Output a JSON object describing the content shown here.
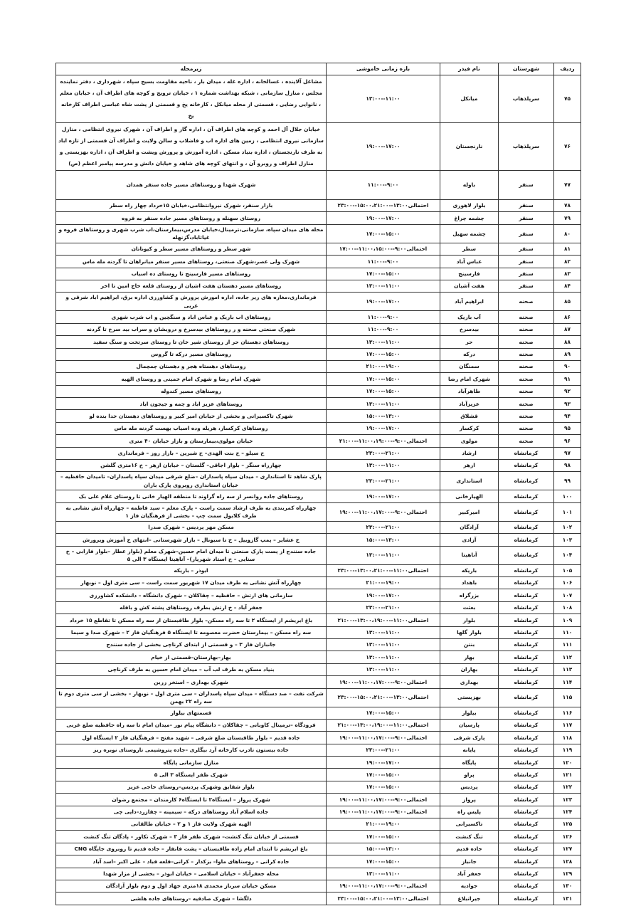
{
  "table": {
    "headers": [
      "ردیف",
      "شهرستان",
      "نام فیدر",
      "بازه زمانی خاموشی",
      "زیرمحله"
    ],
    "rows": [
      [
        "۷۵",
        "سرپلذهاب",
        "میانکل",
        "۱۱:۰۰--۱۳:۰۰",
        "مشاغل آلاینده ، غسالخانه ، اداره غله ، میدان بار ، ناحیه مقاومت بسیج سپاه ، شهرداری ، دفتر نماینده مجلس ، منازل سازمانی ، شبکه بهداشت شماره ۱ ، خیابان ترویج و کوچه های اطراف آن ، خیابان معلم ، نانوایی رضایی ، قسمتی از محله میانکل ، کارخانه یخ و قسمتی از پشت شاه عباسی اطراف کارخانه یخ"
      ],
      [
        "۷۶",
        "سرپلذهاب",
        "نارنجستان",
        "۱۷:۰۰--۱۹:۰۰",
        "خیابان جلال آل احمد و کوچه های اطراف آن ، اداره گاز و اطراف آن ، شهرک نیروی انتظامی ، منازل سازمانی نیروی انتظامی ، زمین های اداره اب و فاضلاب و سالن ولایت و اطراف آن قسمتی از تازه اباد به طرف نارنجستان ، اداره بنیاد مسکن ، اداره آموزش و پرورش ویشت و اطراف آن ، اداره بهزیستی و منازل اطراف و روبرو آن ، و انتهای کوچه های شاهد و خیابان دانش و مدرسه پیامبر اعظم (ص)"
      ],
      [
        "۷۷",
        "سنقر",
        "باوله",
        "۹:۰۰--۱۱:۰۰",
        "شهرک شهدا و روستاهای مسیر جاده سنقر همدان"
      ],
      [
        "۷۸",
        "سنقر",
        "بلوار لاهوری",
        "احتمالی۱۳:۰۰--۱۵:۰۰،۲۱:۰۰--۲۳:۰۰",
        "بازار سنقر، شهرک نیروانتظامی،خیابان ۱۵خرداد چهار راه سطر"
      ],
      [
        "۷۹",
        "سنقر",
        "چشمه چراغ",
        "۱۷:۰۰--۱۹:۰۰",
        "روستای سهنله و روستاهای مسیر جاده سنقر به فروه"
      ],
      [
        "۸۰",
        "سنقر",
        "چشمه سهیل",
        "۱۵:۰۰--۱۷:۰۰",
        "محله های میدان سپاه، سازمانی،ترمینال،خیابان مدرس،بیمارستان،اب شرب شهری و روستاهای فروه و غیاثاباد،گزنهله"
      ],
      [
        "۸۱",
        "سنقر",
        "سطر",
        "احتمالی۹:۰۰--۱۱:۰۰،۱۵:۰۰--۱۷:۰۰",
        "شهر سطر و روستاهای مسیر سطر و کیوناتان"
      ],
      [
        "۸۲",
        "سنقر",
        "عباس آباد",
        "۹:۰۰--۱۱:۰۰",
        "شهرک ولی عصر،شهرک صنعتی، روستاهای مسیر سنقر میانراهان تا گردنه مله ماس"
      ],
      [
        "۸۳",
        "سنقر",
        "فارسینج",
        "۱۵:۰۰--۱۷:۰۰",
        "روستاهای مسیر فارسینج تا روستای ده اسیاب"
      ],
      [
        "۸۴",
        "سنقر",
        "هفت آشیان",
        "۱۱:۰۰--۱۳:۰۰",
        "روستاهای مسیر دهستان هفت اشیان از روستای قلعه حاج امین تا اخر"
      ],
      [
        "۸۵",
        "صحنه",
        "ابراهیم آباد",
        "۱۷:۰۰--۱۹:۰۰",
        "فرمانداری،مغازه های زیر جاده، اداره اموزش پرورش و کشاورزی اداره برق، ابراهیم اباد شرقی و غربی"
      ],
      [
        "۸۶",
        "صحنه",
        "آب باریک",
        "۹:۰۰--۱۱:۰۰",
        "روستاهای اب باریک و عباس اباد و سنگچین و اب شرب شهری"
      ],
      [
        "۸۷",
        "صحنه",
        "بیدسرخ",
        "۹:۰۰--۱۱:۰۰",
        "شهرک صنعتی صحنه و ر روستاهای بیدسرخ و درویشان و سراب بید سرخ تا گردنه"
      ],
      [
        "۸۸",
        "صحنه",
        "حر",
        "۱۱:۰۰--۱۳:۰۰",
        "روستاهای دهستان حر از روستای شیر خان تا روستای سرتخت و سنگ سفید"
      ],
      [
        "۸۹",
        "صحنه",
        "درکه",
        "۱۵:۰۰--۱۷:۰۰",
        "روستاهای مسیر درکه تا گروس"
      ],
      [
        "۹۰",
        "صحنه",
        "سمنگان",
        "۱۹:۰۰--۲۱:۰۰",
        "روستاهای دهستاه هجر و دهستان چمچمال"
      ],
      [
        "۹۱",
        "صحنه",
        "شهرک امام رضا",
        "۱۵:۰۰--۱۷:۰۰",
        "شهرک امام رضا و شهرک امام خمینی و روستای الهیه"
      ],
      [
        "۹۲",
        "صحنه",
        "طاهرآباد",
        "۱۵:۰۰--۱۷:۰۰",
        "روستاهای مسیر کندوله"
      ],
      [
        "۹۳",
        "صحنه",
        "عزیزآباد",
        "۱۱:۰۰--۱۳:۰۰",
        "روستاهای عزیز اباد و چمه و جیجون اباد"
      ],
      [
        "۹۴",
        "صحنه",
        "قشلاق",
        "۱۳:۰۰--۱۵:۰۰",
        "شهرک تاکسیرانی و بخشی از خیابان امیر کبیر و روستاهای دهستان خدا بنده لو"
      ],
      [
        "۹۵",
        "صحنه",
        "کرکسار",
        "۱۷:۰۰--۱۹:۰۰",
        "روستاهای کرکسار، هریله وده اسیاب بهست گردنه مله ماس"
      ],
      [
        "۹۶",
        "صحنه",
        "مولوی",
        "احتمالی۹:۰۰--۱۱:۰۰،۱۹:۰۰--۲۱:۰۰",
        "خیابان مولوی،بیمارستان و بازار خیابان ۴۰ متری"
      ],
      [
        "۹۷",
        "کرمانشاه",
        "ارشاد",
        "۲۱:۰۰--۲۳:۰۰",
        "خ سیلو – خ بنت الهدی– خ شیرین – بازار روز – فرمانداری"
      ],
      [
        "۹۸",
        "کرمانشاه",
        "ازهر",
        "۱۱:۰۰--۱۳:۰۰",
        "چهارراه سنگر – بلوار اجاقی– گلستان – خیابان ازهر – خ ۱۶متری گلشن"
      ],
      [
        "۹۹",
        "کرمانشاه",
        "استانداری",
        "۲۱:۰۰--۲۳:۰۰",
        "پارک شاهد تا استانداری – میدان سپاه پاسداران –ضلع شرقی میدان سپاه پاسداران– تامیدان حافظیه – خیابان استانداری روبروی پارک باران"
      ],
      [
        "۱۰۰",
        "کرمانشاه",
        "الهیارخانی",
        "۱۷:۰۰--۱۹:۰۰",
        "روستاهای جاده روانسر از سه راه گراوند تا منطقه الهیار خانی تا روستای غلام علی بک"
      ],
      [
        "۱۰۱",
        "کرمانشاه",
        "امیرکبیر",
        "احتمالی۹:۰۰--۱۱:۰۰،۱۷:۰۰--۱۹:۰۰",
        "چهارراه کمربندی به طرف ارشاد سمت راست – پارک معلم – سید فاطمه – چهارراه آتش نشانی به طرف کلابول سمت چپ – بخشی از فرهنگیان فاز ۱"
      ],
      [
        "۱۰۲",
        "کرمانشاه",
        "آزادگان",
        "۲۱:۰۰--۲۳:۰۰",
        "مسکن مهر پردیس – شهرک صدرا"
      ],
      [
        "۱۰۳",
        "کرمانشاه",
        "آزادی",
        "۱۳:۰۰--۱۵:۰۰",
        "خ عشایر – پمپ گازوییل – خ تا سیونال – بازار شهرستانی –انتهای خ آموزش وپرورش"
      ],
      [
        "۱۰۴",
        "کرمانشاه",
        "آناهیتا",
        "۱۱:۰۰--۱۳:۰۰",
        "جاده سنندج از پست پارک صنعتی تا میدان امام حسین–شهرک معلم (بلوار عطار –بلوار فارابی – خ سنایی – خ استاد شهریار)– آناهیتا ایستگاه ۳ الی ۵"
      ],
      [
        "۱۰۵",
        "کرمانشاه",
        "باریکه",
        "احتمالی۱۱:۰۰--۱۳:۰۰،۲۱:۰۰--۲۳:۰۰",
        "ابوذر – باریکه"
      ],
      [
        "۱۰۶",
        "کرمانشاه",
        "باهداد",
        "۱۹:۰۰--۲۱:۰۰",
        "چهارراه آتش نشانی به طرف میدان ۱۷ شهریور سمت راست – سی متری اول – نوبهار"
      ],
      [
        "۱۰۷",
        "کرمانشاه",
        "بزرگراه",
        "۱۷:۰۰--۱۹:۰۰",
        "سازمانی های ارتش – حافظیه – چقاکلان – شهرک دانشگاه – دانشکده کشاورزی"
      ],
      [
        "۱۰۸",
        "کرمانشاه",
        "بعثت",
        "۲۱:۰۰--۲۳:۰۰",
        "جعفر آباد – خ ارتش بطرف روستاهای پشته کش و باقله"
      ],
      [
        "۱۰۹",
        "کرمانشاه",
        "بلوار",
        "احتمالی۱۱:۰۰--۱۳:۰۰،۱۹:۰۰--۲۱:۰۰",
        "باغ ابریشم از ایستگاه ۲ تا سه راه مسکن– بلوار طاقبستان از سه راه مسکن تا تقاطع ۱۵ خرداد"
      ],
      [
        "۱۱۰",
        "کرمانشاه",
        "بلوار گلها",
        "۱۱:۰۰--۱۳:۰۰",
        "سه راه مسکن – بیمارستان حضرت معصومه تا ایستگاه ۵ فرهنگیان فاز ۲ – شهرک صدا و سیما"
      ],
      [
        "۱۱۱",
        "کرمانشاه",
        "بنتن",
        "۱۱:۰۰--۱۳:۰۰",
        "جانبازان فاز ۳ – و قسمتی از ابتدای کرناچی بخشی از جاده سنندج"
      ],
      [
        "۱۱۲",
        "کرمانشاه",
        "بهار",
        "۱۱:۰۰--۱۳:۰۰",
        "بهار–بهارستان–قسمتی از خیام"
      ],
      [
        "۱۱۳",
        "کرمانشاه",
        "بهاران",
        "۱۱:۰۰--۱۳:۰۰",
        "بنیاد مسکن به طرف لب آب – میدان امام حسین به طرف کرناچی"
      ],
      [
        "۱۱۴",
        "کرمانشاه",
        "بهداری",
        "احتمالی۹:۰۰--۱۱:۰۰،۱۷:۰۰--۱۹:۰۰",
        "شهرک بهداری – استخر زرین"
      ],
      [
        "۱۱۵",
        "کرمانشاه",
        "بهزیستی",
        "احتمالی۱۳:۰۰--۱۵:۰۰،۲۱:۰۰--۲۳:۰۰",
        "شرکت نفت – صد دستگاه – میدان سپاه پاسداران – سی متری اول – نوبهار – بخشی از سی متری دوم تا سه راه ۲۲ بهمن"
      ],
      [
        "۱۱۶",
        "کرمانشاه",
        "بیلوار",
        "۱۵:۰۰--۱۷:۰۰",
        "قسمتهای بیلوار"
      ],
      [
        "۱۱۷",
        "کرمانشاه",
        "پارسیان",
        "احتمالی۱۱:۰۰--۱۳:۰۰،۱۹:۰۰--۲۱:۰۰",
        "فرودگاه –ترمینال کاوبانی – چقاکلان – دانشگاه پیام نور –میدان امام تا سه راه حافظیه ضلع غربی"
      ],
      [
        "۱۱۸",
        "کرمانشاه",
        "پارک شرقی",
        "احتمالی۹:۰۰--۱۱:۰۰،۱۷:۰۰--۱۹:۰۰",
        "جاده قدیم – بلوار طاقبستان ضلع شرقی – شهید مفتح – فرهنگیان فاز ۲ ایستگاه اول"
      ],
      [
        "۱۱۹",
        "کرمانشاه",
        "پایانه",
        "۲۱:۰۰--۲۳:۰۰",
        "جاده بیستون تادرب کارخانه آرد بیگلری –جاده پتروشیمی تاروستای نوبره ریز"
      ],
      [
        "۱۲۰",
        "کرمانشاه",
        "پایگاه",
        "۱۷:۰۰--۱۹:۰۰",
        "منازل سازمانی پایگاه"
      ],
      [
        "۱۲۱",
        "کرمانشاه",
        "پراو",
        "۱۵:۰۰--۱۷:۰۰",
        "شهرک ظفر ایستگاه ۳ الی ۵"
      ],
      [
        "۱۲۲",
        "کرمانشاه",
        "پردیس",
        "۱۵:۰۰--۱۷:۰۰",
        "بلوار شقایق وشهرک پردیس–روستای حاجی عزیز"
      ],
      [
        "۱۲۳",
        "کرمانشاه",
        "پرواز",
        "احتمالی۹:۰۰--۱۱:۰۰،۱۷:۰۰--۱۹:۰۰",
        "شهرک پرواز – ایستگاه۲ تا ایستگاه۶ کارمندان – مجتمع رضوان"
      ],
      [
        "۱۲۴",
        "کرمانشاه",
        "پلیس راه",
        "احتمالی۹:۰۰--۱۱:۰۰،۱۷:۰۰--۱۹:۰۰",
        "جاده اسلام آباد روستاهای درکه – سیمینه – چقازرد–دایی چی"
      ],
      [
        "۱۲۵",
        "کرمانشاه",
        "تاکسیرانی",
        "۱۹:۰۰--۲۱:۰۰",
        "الهیه شهرک ولایت فاز ۱ و ۲ – خیابان طالقانی"
      ],
      [
        "۱۲۶",
        "کرمانشاه",
        "تنگ کنشت",
        "۱۵:۰۰--۱۷:۰۰",
        "قسمتی از خیابان تنگ کنشت– شهرک ظفر فاز ۳ – شهرک تکاور – پادگان تنگ کنشت"
      ],
      [
        "۱۲۷",
        "کرمانشاه",
        "جاده قدیم",
        "۱۳:۰۰--۱۵:۰۰",
        "باغ ابریشم تا ابتدای امام زاده طاقبستان – پشت فانفار – جاده قدیم تا روبروی جایگاه CNG"
      ],
      [
        "۱۲۸",
        "کرمانشاه",
        "جانباز",
        "۱۵:۰۰--۱۷:۰۰",
        "جاده کرانی – روستاهای ماوا– بزکدار – کرانی–قلعه قباد – علی اکبر –اسد آباد"
      ],
      [
        "۱۲۹",
        "کرمانشاه",
        "جعفر آباد",
        "۱۱:۰۰--۱۳:۰۰",
        "محله جعفرآباد – خیابان اسلامی – خیابان ابوذر – بخشی از مزار شهدا"
      ],
      [
        "۱۳۰",
        "کرمانشاه",
        "جوادیه",
        "احتمالی۹:۰۰--۱۱:۰۰،۱۷:۰۰--۱۹:۰۰",
        "مسکن خیابان سرباز محمدی ۱۸متری جهاد اول و دوم بلوار آزادگان"
      ],
      [
        "۱۳۱",
        "کرمانشاه",
        "جیرانبلاغ",
        "احتمالی۱۳:۰۰--۱۵:۰۰،۲۱:۰۰--۲۳:۰۰",
        "دلگشا – شهرک صادقیه –روستاهای جاده هلشی"
      ]
    ]
  }
}
